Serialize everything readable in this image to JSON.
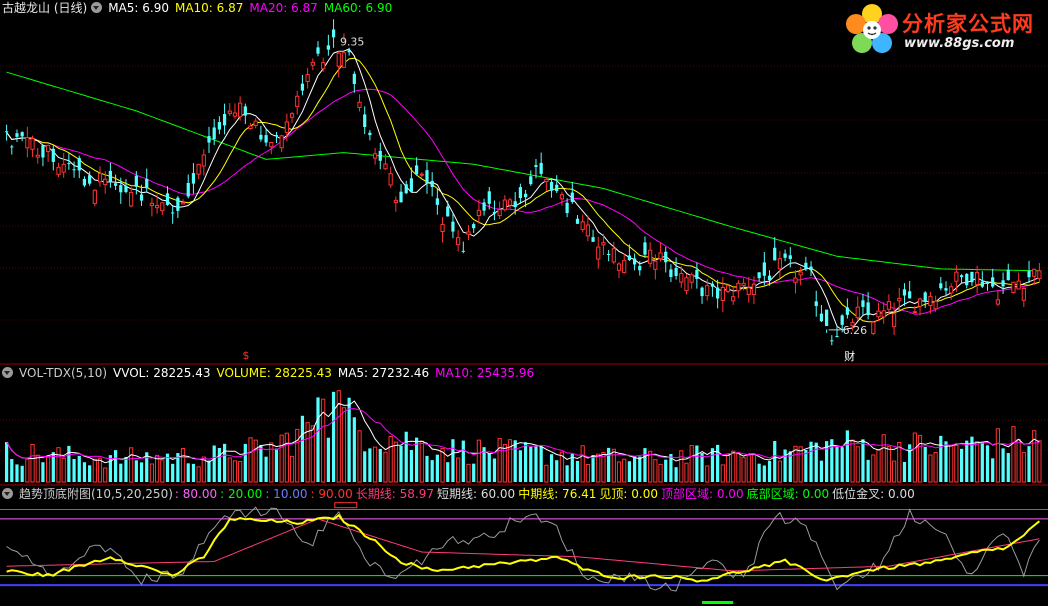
{
  "main_header": {
    "title": "古越龙山 (日线)",
    "ma5": "MA5: 6.90",
    "ma10": "MA10: 6.87",
    "ma20": "MA20: 6.87",
    "ma60": "MA60: 6.90"
  },
  "vol_header": {
    "title": "VOL-TDX(5,10)",
    "vvol": "VVOL: 28225.43",
    "volume": "VOLUME: 28225.43",
    "ma5": "MA5: 27232.46",
    "ma10": "MA10: 25435.96"
  },
  "ind_header": {
    "title": "趋势顶底附图(10,5,20,250)",
    "v1": ": 80.00",
    "v2": ": 20.00",
    "v3": ": 10.00",
    "v4": ": 90.00",
    "long_line": "长期线: 58.97",
    "short_line": "短期线: 60.00",
    "mid_line": "中期线: 76.41",
    "see_top": "见顶: 0.00",
    "top_zone": "顶部区域: 0.00",
    "bottom_zone": "底部区域: 0.00",
    "low_cross": "低位金叉: 0.00"
  },
  "annotations": {
    "high_label": "9.35",
    "low_label": "6.26",
    "cai_marker": "财",
    "dollar_marker": "$"
  },
  "logo": {
    "text": "分析家公式网",
    "url": "www.88gs.com"
  },
  "colors": {
    "up": "#ff3232",
    "down": "#54ffff",
    "ma5": "#ffffff",
    "ma10": "#ffff00",
    "ma20": "#ff00ff",
    "ma60": "#00ff00",
    "long": "#ff3c78",
    "short": "#ffffff",
    "mid": "#ffff00",
    "level80": "#ff64ff",
    "level20": "#00ff00",
    "level10": "#4040ff",
    "level90": "#ff3333"
  },
  "chart_data": [
    {
      "type": "candlestick",
      "title": "古越龙山 (日线)",
      "x_count": 200,
      "y_range": [
        5.98,
        9.55
      ],
      "price_guides": [
        {
          "x": 0,
          "y": 8.25
        },
        {
          "x": 8,
          "y": 8.15
        },
        {
          "x": 13,
          "y": 7.85
        },
        {
          "x": 25,
          "y": 7.75
        },
        {
          "x": 33,
          "y": 7.55
        },
        {
          "x": 38,
          "y": 8.05
        },
        {
          "x": 42,
          "y": 8.45
        },
        {
          "x": 46,
          "y": 8.55
        },
        {
          "x": 50,
          "y": 8.15
        },
        {
          "x": 55,
          "y": 8.55
        },
        {
          "x": 60,
          "y": 9.05
        },
        {
          "x": 65,
          "y": 9.3
        },
        {
          "x": 68,
          "y": 8.55
        },
        {
          "x": 72,
          "y": 8.05
        },
        {
          "x": 76,
          "y": 7.6
        },
        {
          "x": 80,
          "y": 7.95
        },
        {
          "x": 84,
          "y": 7.45
        },
        {
          "x": 88,
          "y": 7.2
        },
        {
          "x": 92,
          "y": 7.6
        },
        {
          "x": 98,
          "y": 7.55
        },
        {
          "x": 103,
          "y": 7.95
        },
        {
          "x": 107,
          "y": 7.7
        },
        {
          "x": 111,
          "y": 7.3
        },
        {
          "x": 116,
          "y": 7.15
        },
        {
          "x": 120,
          "y": 6.95
        },
        {
          "x": 125,
          "y": 7.05
        },
        {
          "x": 130,
          "y": 6.85
        },
        {
          "x": 136,
          "y": 6.65
        },
        {
          "x": 140,
          "y": 6.7
        },
        {
          "x": 146,
          "y": 6.85
        },
        {
          "x": 150,
          "y": 6.95
        },
        {
          "x": 155,
          "y": 6.8
        },
        {
          "x": 158,
          "y": 6.25
        },
        {
          "x": 161,
          "y": 6.3
        },
        {
          "x": 164,
          "y": 6.45
        },
        {
          "x": 168,
          "y": 6.42
        },
        {
          "x": 172,
          "y": 6.55
        },
        {
          "x": 176,
          "y": 6.6
        },
        {
          "x": 181,
          "y": 6.75
        },
        {
          "x": 186,
          "y": 6.88
        },
        {
          "x": 191,
          "y": 6.7
        },
        {
          "x": 195,
          "y": 6.8
        },
        {
          "x": 199,
          "y": 6.9
        }
      ],
      "ma60_guides": [
        {
          "x": 0,
          "y": 8.95
        },
        {
          "x": 25,
          "y": 8.55
        },
        {
          "x": 50,
          "y": 8.05
        },
        {
          "x": 65,
          "y": 8.12
        },
        {
          "x": 90,
          "y": 8.0
        },
        {
          "x": 115,
          "y": 7.75
        },
        {
          "x": 140,
          "y": 7.35
        },
        {
          "x": 160,
          "y": 7.05
        },
        {
          "x": 180,
          "y": 6.92
        },
        {
          "x": 199,
          "y": 6.9
        }
      ],
      "ma5_last": 6.9,
      "ma10_last": 6.87,
      "ma20_last": 6.87,
      "ma60_last": 6.9,
      "high": 9.35,
      "low": 6.26
    },
    {
      "type": "bar",
      "title": "VOL-TDX(5,10)",
      "x_count": 200,
      "y_range": [
        0,
        70000
      ],
      "volume_guides": [
        {
          "x": 0,
          "y": 20000
        },
        {
          "x": 20,
          "y": 16000
        },
        {
          "x": 40,
          "y": 18000
        },
        {
          "x": 52,
          "y": 24000
        },
        {
          "x": 58,
          "y": 38000
        },
        {
          "x": 62,
          "y": 52000
        },
        {
          "x": 66,
          "y": 42000
        },
        {
          "x": 72,
          "y": 32000
        },
        {
          "x": 85,
          "y": 22000
        },
        {
          "x": 100,
          "y": 20000
        },
        {
          "x": 120,
          "y": 16000
        },
        {
          "x": 150,
          "y": 20000
        },
        {
          "x": 160,
          "y": 26000
        },
        {
          "x": 180,
          "y": 24000
        },
        {
          "x": 199,
          "y": 28225.43
        }
      ],
      "last_volume": 28225.43,
      "ma5_last": 27232.46,
      "ma10_last": 25435.96
    },
    {
      "type": "line",
      "title": "趋势顶底附图(10,5,20,250)",
      "x_count": 200,
      "y_range": [
        -10,
        100
      ],
      "levels": [
        80,
        20,
        10,
        90
      ],
      "mid_guides": [
        {
          "x": 0,
          "y": 25
        },
        {
          "x": 8,
          "y": 20
        },
        {
          "x": 14,
          "y": 30
        },
        {
          "x": 20,
          "y": 40
        },
        {
          "x": 26,
          "y": 30
        },
        {
          "x": 32,
          "y": 20
        },
        {
          "x": 38,
          "y": 40
        },
        {
          "x": 43,
          "y": 80
        },
        {
          "x": 50,
          "y": 78
        },
        {
          "x": 56,
          "y": 76
        },
        {
          "x": 64,
          "y": 82
        },
        {
          "x": 70,
          "y": 60
        },
        {
          "x": 76,
          "y": 35
        },
        {
          "x": 82,
          "y": 25
        },
        {
          "x": 90,
          "y": 30
        },
        {
          "x": 100,
          "y": 35
        },
        {
          "x": 106,
          "y": 40
        },
        {
          "x": 112,
          "y": 25
        },
        {
          "x": 118,
          "y": 18
        },
        {
          "x": 126,
          "y": 20
        },
        {
          "x": 134,
          "y": 15
        },
        {
          "x": 142,
          "y": 25
        },
        {
          "x": 150,
          "y": 35
        },
        {
          "x": 158,
          "y": 15
        },
        {
          "x": 165,
          "y": 25
        },
        {
          "x": 172,
          "y": 30
        },
        {
          "x": 180,
          "y": 35
        },
        {
          "x": 187,
          "y": 45
        },
        {
          "x": 193,
          "y": 50
        },
        {
          "x": 199,
          "y": 76.41
        }
      ],
      "short_guides": [
        {
          "x": 0,
          "y": 50
        },
        {
          "x": 10,
          "y": 20
        },
        {
          "x": 18,
          "y": 55
        },
        {
          "x": 26,
          "y": 15
        },
        {
          "x": 34,
          "y": 25
        },
        {
          "x": 42,
          "y": 85
        },
        {
          "x": 52,
          "y": 90
        },
        {
          "x": 58,
          "y": 50
        },
        {
          "x": 64,
          "y": 90
        },
        {
          "x": 70,
          "y": 30
        },
        {
          "x": 76,
          "y": 20
        },
        {
          "x": 84,
          "y": 55
        },
        {
          "x": 92,
          "y": 60
        },
        {
          "x": 100,
          "y": 85
        },
        {
          "x": 106,
          "y": 70
        },
        {
          "x": 112,
          "y": 15
        },
        {
          "x": 120,
          "y": 20
        },
        {
          "x": 128,
          "y": 5
        },
        {
          "x": 136,
          "y": 40
        },
        {
          "x": 142,
          "y": 15
        },
        {
          "x": 148,
          "y": 85
        },
        {
          "x": 154,
          "y": 70
        },
        {
          "x": 160,
          "y": 10
        },
        {
          "x": 168,
          "y": 30
        },
        {
          "x": 174,
          "y": 85
        },
        {
          "x": 180,
          "y": 70
        },
        {
          "x": 186,
          "y": 20
        },
        {
          "x": 192,
          "y": 70
        },
        {
          "x": 196,
          "y": 20
        },
        {
          "x": 199,
          "y": 60
        }
      ],
      "long_guides": [
        {
          "x": 0,
          "y": 30
        },
        {
          "x": 40,
          "y": 35
        },
        {
          "x": 60,
          "y": 80
        },
        {
          "x": 80,
          "y": 45
        },
        {
          "x": 110,
          "y": 40
        },
        {
          "x": 140,
          "y": 25
        },
        {
          "x": 170,
          "y": 30
        },
        {
          "x": 199,
          "y": 58.97
        }
      ]
    }
  ]
}
